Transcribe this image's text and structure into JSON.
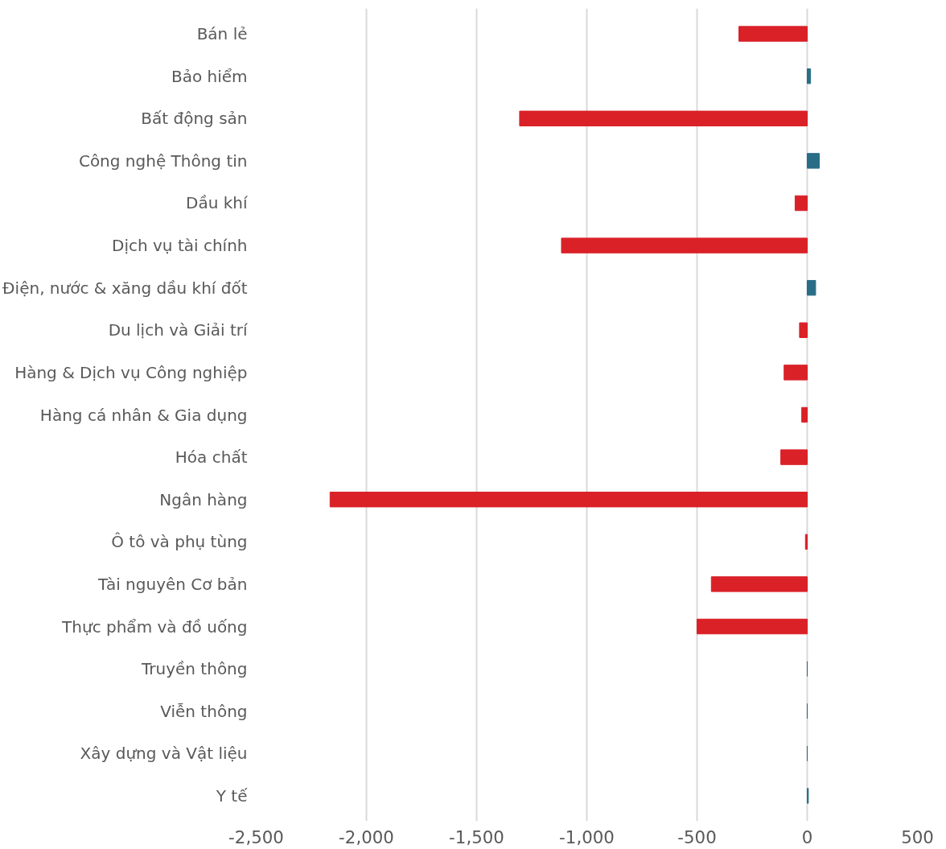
{
  "chart_data": {
    "type": "bar",
    "orientation": "horizontal",
    "categories": [
      "Bán lẻ",
      "Bảo hiểm",
      "Bất động sản",
      "Công nghệ Thông tin",
      "Dầu khí",
      "Dịch vụ tài chính",
      "Điện, nước & xăng dầu khí đốt",
      "Du lịch và Giải trí",
      "Hàng & Dịch vụ Công nghiệp",
      "Hàng cá nhân & Gia dụng",
      "Hóa chất",
      "Ngân hàng",
      "Ô tô và phụ tùng",
      "Tài nguyên Cơ bản",
      "Thực phẩm và đồ uống",
      "Truyền thông",
      "Viễn thông",
      "Xây dựng và Vật liệu",
      "Y tế"
    ],
    "values": [
      -310,
      15,
      -1305,
      55,
      -55,
      -1115,
      38,
      -35,
      -105,
      -25,
      -120,
      -2165,
      -8,
      -435,
      -500,
      0,
      0,
      0,
      5
    ],
    "colors": [
      "#da2128",
      "#2a6d86",
      "#da2128",
      "#2a6d86",
      "#da2128",
      "#da2128",
      "#2a6d86",
      "#da2128",
      "#da2128",
      "#da2128",
      "#da2128",
      "#da2128",
      "#da2128",
      "#da2128",
      "#da2128",
      "#2a6d86",
      "#2a6d86",
      "#2a6d86",
      "#2a6d86"
    ],
    "xlim": [
      -2500,
      500
    ],
    "xticks": [
      {
        "value": -2500,
        "label": "-2,500"
      },
      {
        "value": -2000,
        "label": "-2,000"
      },
      {
        "value": -1500,
        "label": "-1,500"
      },
      {
        "value": -1000,
        "label": "-1,000"
      },
      -500,
      0,
      500
    ],
    "grid": "x"
  }
}
